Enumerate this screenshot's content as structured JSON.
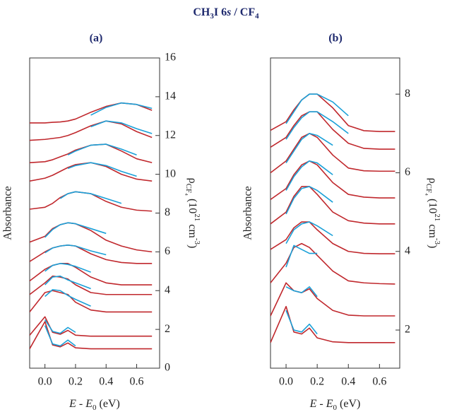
{
  "title": [
    {
      "text": "CH"
    },
    {
      "text": "3",
      "sub": true
    },
    {
      "text": "I 6"
    },
    {
      "text": "s",
      "italic": true
    },
    {
      "text": " / CF"
    },
    {
      "text": "4",
      "sub": true
    }
  ],
  "chart_data": [
    {
      "type": "line",
      "title": "(a)",
      "xlabel": [
        {
          "text": "E",
          "italic": true
        },
        {
          "text": " - "
        },
        {
          "text": "E",
          "italic": true
        },
        {
          "text": "0",
          "sub": true
        },
        {
          "text": " (eV)"
        }
      ],
      "ylabel": "Absorbance",
      "y2label": [
        {
          "text": "ρ"
        },
        {
          "text": "CF₄",
          "sub": true
        },
        {
          "text": " (10"
        },
        {
          "text": "21",
          "sup": true
        },
        {
          "text": " cm"
        },
        {
          "text": "-3",
          "sup": true
        },
        {
          "text": ")"
        }
      ],
      "xlim": [
        -0.1,
        0.75
      ],
      "ylim": [
        0,
        16
      ],
      "xticks": [
        {
          "value": 0,
          "label": "0.0"
        },
        0.2,
        0.4,
        0.6
      ],
      "yticks": [
        0,
        2,
        4,
        6,
        8,
        10,
        12,
        14,
        16
      ],
      "x": [
        -0.1,
        0,
        0.05,
        0.1,
        0.15,
        0.2,
        0.3,
        0.4,
        0.5,
        0.6,
        0.7
      ],
      "series": [
        {
          "color": "#c0282d",
          "values": [
            1.0,
            2.4,
            1.2,
            1.1,
            1.3,
            1.05,
            1.0,
            1.0,
            1.0,
            1.0,
            1.0
          ]
        },
        {
          "color": "#1aa0d8",
          "values": [
            null,
            2.2,
            1.25,
            1.15,
            1.45,
            1.15,
            null,
            null,
            null,
            null,
            null
          ]
        },
        {
          "color": "#c0282d",
          "values": [
            1.7,
            2.65,
            1.85,
            1.75,
            1.95,
            1.7,
            1.65,
            1.65,
            1.65,
            1.65,
            1.65
          ]
        },
        {
          "color": "#1aa0d8",
          "values": [
            null,
            2.5,
            1.9,
            1.8,
            2.1,
            1.85,
            null,
            null,
            null,
            null,
            null
          ]
        },
        {
          "color": "#c0282d",
          "values": [
            2.9,
            3.9,
            4.0,
            3.9,
            3.8,
            3.4,
            3.0,
            2.9,
            2.9,
            2.9,
            2.9
          ]
        },
        {
          "color": "#1aa0d8",
          "values": [
            null,
            3.7,
            4.05,
            4.0,
            3.75,
            3.55,
            3.2,
            null,
            null,
            null,
            null
          ]
        },
        {
          "color": "#c0282d",
          "values": [
            3.8,
            4.4,
            4.75,
            4.7,
            4.6,
            4.3,
            3.9,
            3.8,
            3.8,
            3.8,
            3.8
          ]
        },
        {
          "color": "#1aa0d8",
          "values": [
            null,
            4.3,
            4.7,
            4.75,
            4.55,
            4.4,
            4.1,
            null,
            null,
            null,
            null
          ]
        },
        {
          "color": "#c0282d",
          "values": [
            4.5,
            5.1,
            5.3,
            5.4,
            5.4,
            5.2,
            4.7,
            4.4,
            4.3,
            4.3,
            4.3
          ]
        },
        {
          "color": "#1aa0d8",
          "values": [
            null,
            5.0,
            5.3,
            5.4,
            5.35,
            5.25,
            4.95,
            null,
            null,
            null,
            null
          ]
        },
        {
          "color": "#c0282d",
          "values": [
            5.5,
            6.0,
            6.2,
            6.3,
            6.35,
            6.3,
            5.9,
            5.6,
            5.45,
            5.4,
            5.4
          ]
        },
        {
          "color": "#1aa0d8",
          "values": [
            null,
            5.95,
            6.2,
            6.3,
            6.35,
            6.3,
            6.05,
            5.85,
            null,
            null,
            null
          ]
        },
        {
          "color": "#c0282d",
          "values": [
            6.5,
            6.8,
            7.2,
            7.4,
            7.5,
            7.45,
            7.1,
            6.6,
            6.3,
            6.1,
            6.0
          ]
        },
        {
          "color": "#1aa0d8",
          "values": [
            null,
            6.75,
            7.15,
            7.4,
            7.5,
            7.45,
            7.2,
            6.95,
            null,
            null,
            null
          ]
        },
        {
          "color": "#c0282d",
          "values": [
            8.2,
            8.3,
            8.5,
            8.8,
            9.0,
            9.1,
            9.0,
            8.6,
            8.3,
            8.15,
            8.1
          ]
        },
        {
          "color": "#1aa0d8",
          "values": [
            null,
            null,
            null,
            8.75,
            9.0,
            9.1,
            9.0,
            8.75,
            8.5,
            null,
            null
          ]
        },
        {
          "color": "#c0282d",
          "values": [
            9.65,
            9.8,
            9.95,
            10.15,
            10.35,
            10.5,
            10.6,
            10.4,
            10.0,
            9.75,
            9.65
          ]
        },
        {
          "color": "#1aa0d8",
          "values": [
            null,
            null,
            null,
            null,
            10.3,
            10.45,
            10.6,
            10.45,
            10.15,
            9.9,
            null
          ]
        },
        {
          "color": "#c0282d",
          "values": [
            10.6,
            10.65,
            10.75,
            10.9,
            11.05,
            11.25,
            11.5,
            11.55,
            11.2,
            10.8,
            10.6
          ]
        },
        {
          "color": "#1aa0d8",
          "values": [
            null,
            null,
            null,
            null,
            11.0,
            11.2,
            11.5,
            11.55,
            11.3,
            11.0,
            null
          ]
        },
        {
          "color": "#c0282d",
          "values": [
            11.75,
            11.8,
            11.85,
            11.9,
            12.0,
            12.15,
            12.5,
            12.75,
            12.6,
            12.2,
            11.9
          ]
        },
        {
          "color": "#1aa0d8",
          "values": [
            null,
            null,
            null,
            null,
            null,
            null,
            12.45,
            12.75,
            12.65,
            12.35,
            12.1
          ]
        },
        {
          "color": "#c0282d",
          "values": [
            12.65,
            12.65,
            12.68,
            12.7,
            12.75,
            12.85,
            13.2,
            13.5,
            13.68,
            13.6,
            13.3
          ]
        },
        {
          "color": "#1aa0d8",
          "values": [
            null,
            null,
            null,
            null,
            null,
            null,
            13.05,
            13.45,
            13.68,
            13.6,
            13.4
          ]
        }
      ]
    },
    {
      "type": "line",
      "title": "(b)",
      "xlabel": [
        {
          "text": "E",
          "italic": true
        },
        {
          "text": " - "
        },
        {
          "text": "E",
          "italic": true
        },
        {
          "text": "0",
          "sub": true
        },
        {
          "text": " (eV)"
        }
      ],
      "ylabel": "Absorbance",
      "y2label": [
        {
          "text": "ρ"
        },
        {
          "text": "CF₄",
          "sub": true
        },
        {
          "text": " (10"
        },
        {
          "text": "21",
          "sup": true
        },
        {
          "text": " cm"
        },
        {
          "text": "-3",
          "sup": true
        },
        {
          "text": ")"
        }
      ],
      "xlim": [
        -0.1,
        0.73
      ],
      "ylim": [
        1.03,
        8.92
      ],
      "xticks": [
        {
          "value": 0,
          "label": "0.0"
        },
        0.2,
        0.4,
        0.6
      ],
      "yticks": [
        2,
        4,
        6,
        8
      ],
      "x": [
        -0.1,
        0,
        0.05,
        0.1,
        0.15,
        0.2,
        0.3,
        0.4,
        0.5,
        0.6,
        0.7
      ],
      "series": [
        {
          "color": "#c0282d",
          "values": [
            1.68,
            2.6,
            1.95,
            1.9,
            2.05,
            1.8,
            1.7,
            1.68,
            1.68,
            1.68,
            1.68
          ]
        },
        {
          "color": "#1aa0d8",
          "values": [
            null,
            2.5,
            2.0,
            1.95,
            2.15,
            1.9,
            null,
            null,
            null,
            null,
            null
          ]
        },
        {
          "color": "#c0282d",
          "values": [
            2.36,
            3.2,
            3.0,
            2.95,
            3.05,
            2.8,
            2.5,
            2.38,
            2.36,
            2.36,
            2.36
          ]
        },
        {
          "color": "#1aa0d8",
          "values": [
            null,
            3.1,
            3.0,
            2.95,
            3.1,
            2.85,
            null,
            null,
            null,
            null,
            null
          ]
        },
        {
          "color": "#c0282d",
          "values": [
            3.2,
            3.7,
            4.1,
            4.2,
            4.1,
            3.9,
            3.5,
            3.25,
            3.2,
            3.18,
            3.17
          ]
        },
        {
          "color": "#1aa0d8",
          "values": [
            null,
            3.6,
            4.15,
            4.05,
            3.95,
            3.95,
            null,
            null,
            null,
            null,
            null
          ]
        },
        {
          "color": "#c0282d",
          "values": [
            4.05,
            4.3,
            4.6,
            4.75,
            4.75,
            4.55,
            4.2,
            4.0,
            3.95,
            3.94,
            3.94
          ]
        },
        {
          "color": "#1aa0d8",
          "values": [
            null,
            4.2,
            4.55,
            4.7,
            4.75,
            4.65,
            4.4,
            null,
            null,
            null,
            null
          ]
        },
        {
          "color": "#c0282d",
          "values": [
            4.7,
            5.0,
            5.4,
            5.65,
            5.65,
            5.45,
            5.0,
            4.78,
            4.72,
            4.7,
            4.7
          ]
        },
        {
          "color": "#1aa0d8",
          "values": [
            null,
            4.95,
            5.35,
            5.6,
            5.65,
            5.55,
            5.25,
            null,
            null,
            null,
            null
          ]
        },
        {
          "color": "#c0282d",
          "values": [
            5.32,
            5.6,
            5.95,
            6.2,
            6.3,
            6.2,
            5.75,
            5.45,
            5.38,
            5.36,
            5.36
          ]
        },
        {
          "color": "#1aa0d8",
          "values": [
            null,
            5.55,
            5.9,
            6.15,
            6.3,
            6.25,
            5.95,
            null,
            null,
            null,
            null
          ]
        },
        {
          "color": "#c0282d",
          "values": [
            6.0,
            6.3,
            6.6,
            6.9,
            7.0,
            6.9,
            6.45,
            6.12,
            6.05,
            6.04,
            6.04
          ]
        },
        {
          "color": "#1aa0d8",
          "values": [
            null,
            6.25,
            6.55,
            6.85,
            7.0,
            6.95,
            6.7,
            null,
            null,
            null,
            null
          ]
        },
        {
          "color": "#c0282d",
          "values": [
            6.65,
            6.9,
            7.2,
            7.45,
            7.55,
            7.55,
            7.1,
            6.75,
            6.62,
            6.6,
            6.6
          ]
        },
        {
          "color": "#1aa0d8",
          "values": [
            null,
            6.85,
            7.15,
            7.4,
            7.55,
            7.55,
            7.3,
            7.0,
            null,
            null,
            null
          ]
        },
        {
          "color": "#c0282d",
          "values": [
            7.08,
            7.3,
            7.6,
            7.85,
            8.0,
            8.0,
            7.65,
            7.2,
            7.07,
            7.05,
            7.05
          ]
        },
        {
          "color": "#1aa0d8",
          "values": [
            null,
            7.25,
            7.55,
            7.85,
            8.0,
            8.0,
            7.8,
            7.45,
            null,
            null,
            null
          ]
        }
      ]
    }
  ]
}
